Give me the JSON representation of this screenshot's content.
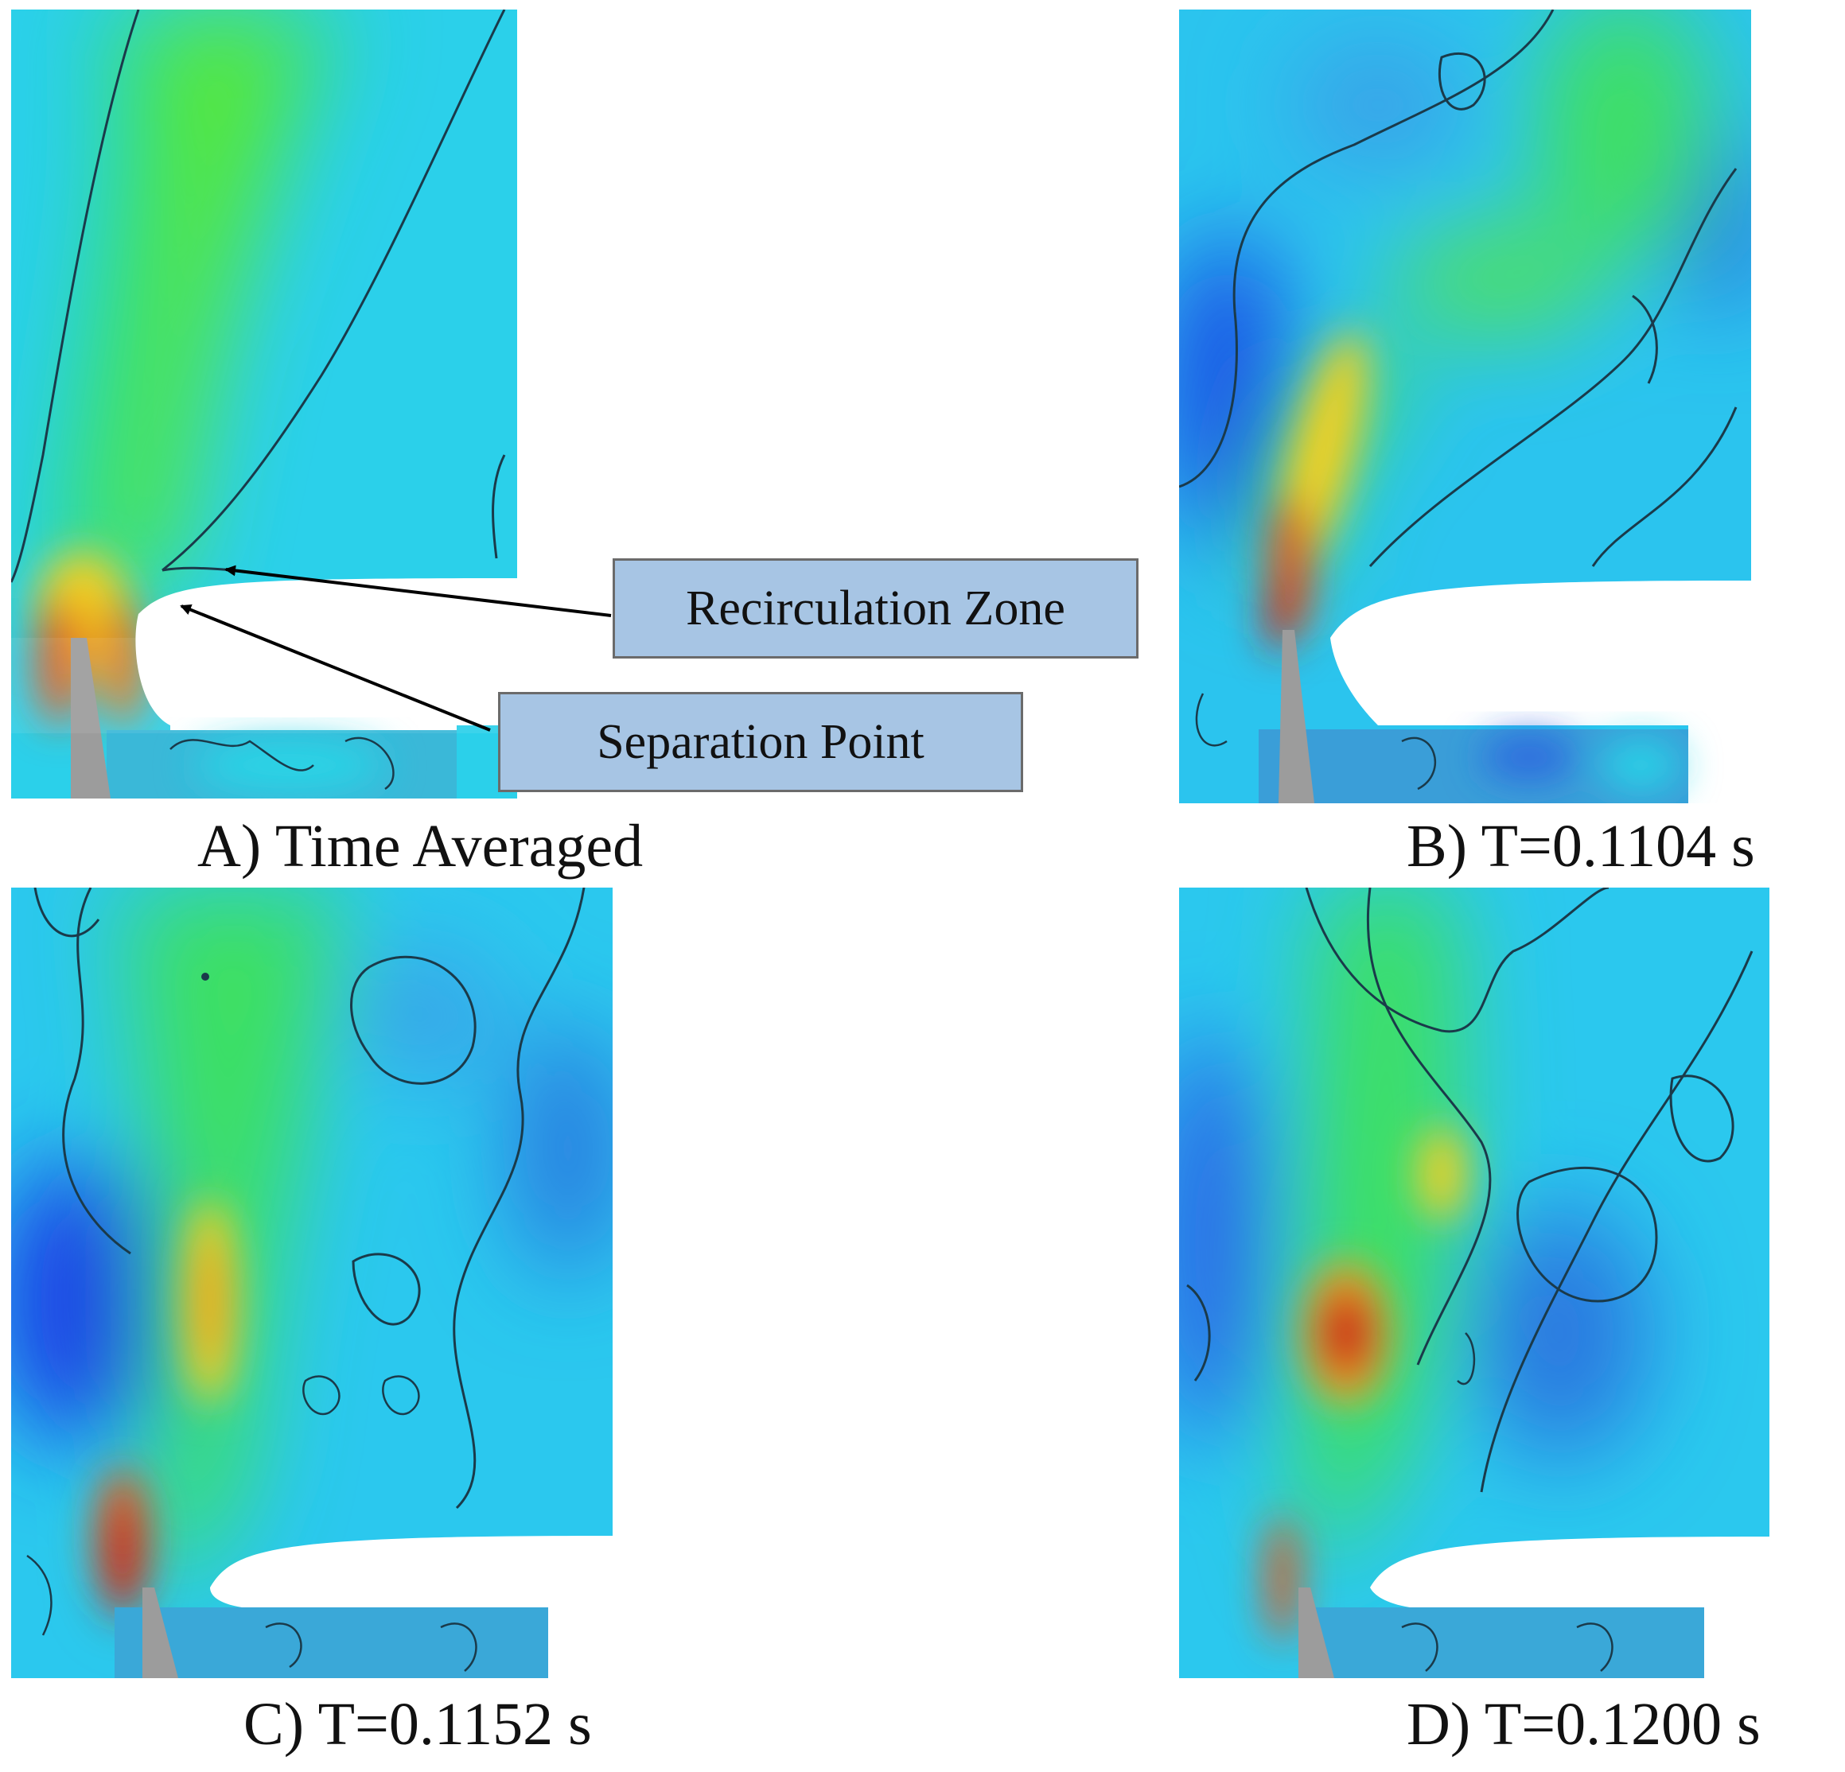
{
  "panels": [
    {
      "id": "A",
      "caption": "A) Time Averaged"
    },
    {
      "id": "B",
      "caption": "B)  T=0.1104 s"
    },
    {
      "id": "C",
      "caption": "C)  T=0.1152 s"
    },
    {
      "id": "D",
      "caption": "D)  T=0.1200 s"
    }
  ],
  "annotations": {
    "recirculation": "Recirculation Zone",
    "separation": "Separation Point"
  },
  "colors": {
    "field_low": "#1e4ee6",
    "field_mid": "#19d6e6",
    "field_green": "#1fe04a",
    "field_high": "#f2e21a",
    "field_peak": "#d62a1a",
    "wall": "#9c9c9c",
    "callout_fill": "#a7c5e4"
  }
}
